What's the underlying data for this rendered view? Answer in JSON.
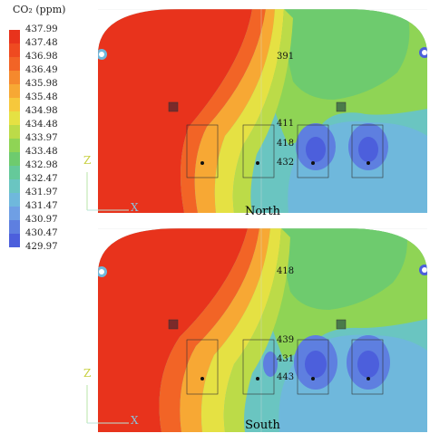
{
  "legend": {
    "title": "CO₂ (ppm)",
    "values": [
      "437.99",
      "437.48",
      "436.98",
      "436.49",
      "435.98",
      "435.48",
      "434.98",
      "434.48",
      "433.97",
      "433.48",
      "432.98",
      "432.47",
      "431.97",
      "431.47",
      "430.97",
      "430.47",
      "429.97"
    ],
    "colors": [
      "#e8331c",
      "#ef4a20",
      "#f26426",
      "#f5892d",
      "#f7a834",
      "#f6c83c",
      "#e5e143",
      "#bcdb48",
      "#8fd455",
      "#6ecb6e",
      "#65c99a",
      "#6ac5c1",
      "#6fb8dc",
      "#6f9fe4",
      "#5e7fe0",
      "#4c5fdc"
    ]
  },
  "panels": [
    {
      "name": "North",
      "labels": [
        {
          "text": "391"
        },
        {
          "text": "411"
        },
        {
          "text": "418"
        },
        {
          "text": "432"
        }
      ]
    },
    {
      "name": "South",
      "labels": [
        {
          "text": "418"
        },
        {
          "text": "439"
        },
        {
          "text": "431"
        },
        {
          "text": "443"
        }
      ]
    }
  ],
  "axis": {
    "z": "Z",
    "x": "X"
  }
}
